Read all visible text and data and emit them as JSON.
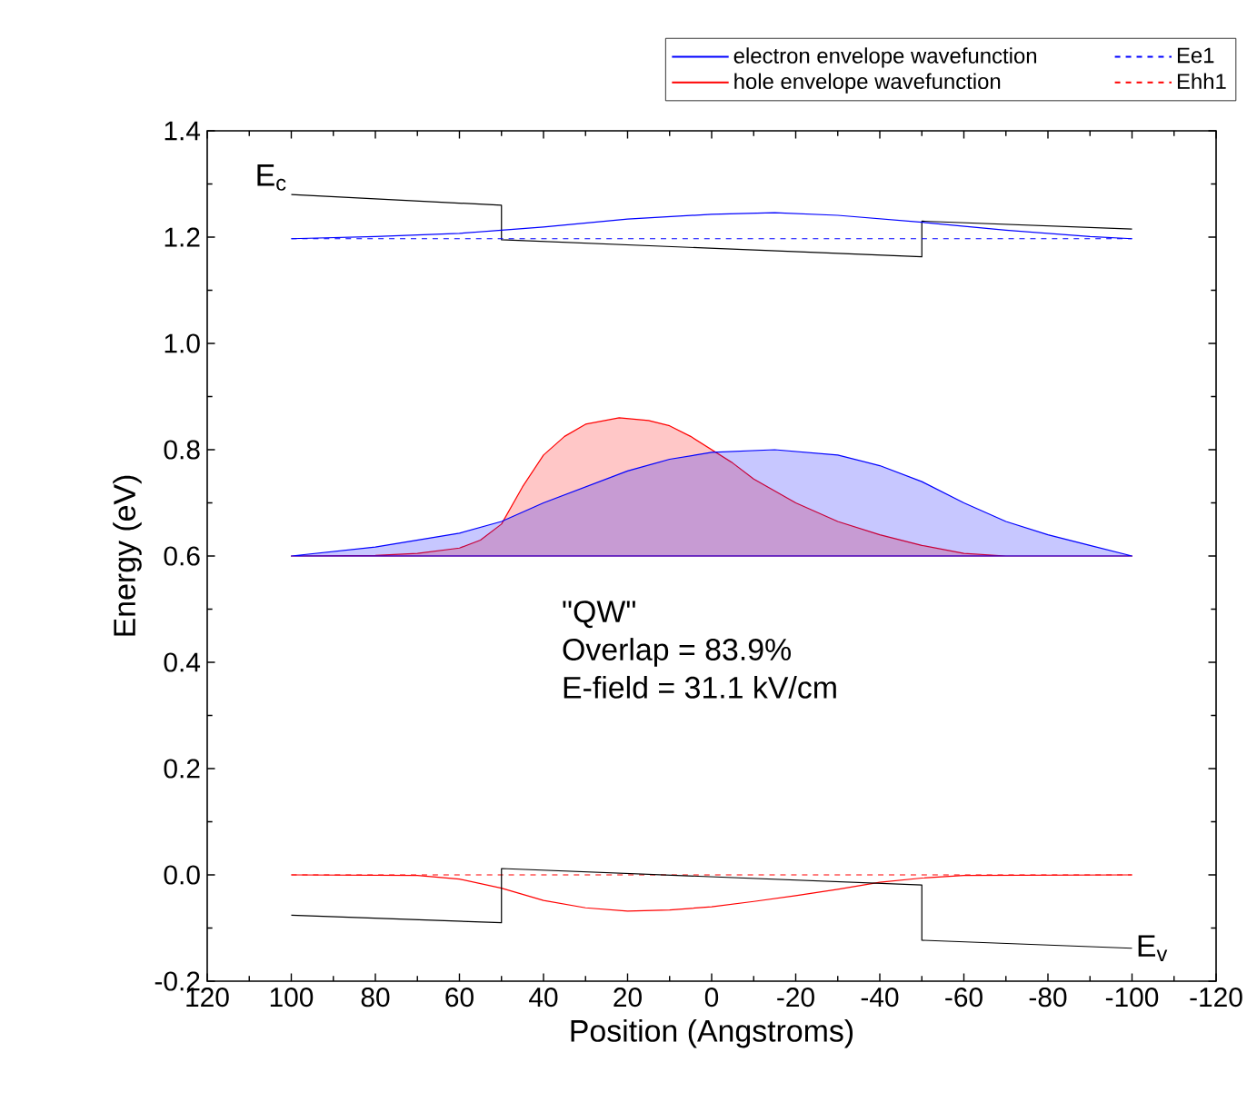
{
  "chart_data": {
    "type": "line",
    "xlabel": "Position (Angstroms)",
    "ylabel": "Energy (eV)",
    "xlim": [
      120,
      -120
    ],
    "xticks": [
      120,
      100,
      80,
      60,
      40,
      20,
      0,
      -20,
      -40,
      -60,
      -80,
      -100,
      -120
    ],
    "ylim": [
      -0.2,
      1.4
    ],
    "yticks": [
      -0.2,
      {
        "value": 0,
        "label": "0.0"
      },
      0.2,
      0.4,
      0.6,
      0.8,
      {
        "value": 1,
        "label": "1.0"
      },
      1.2,
      1.4
    ],
    "legend": "top",
    "series": [
      {
        "color": "#000000",
        "x": [
          100,
          50,
          50,
          -50,
          -50,
          -100
        ],
        "values": [
          1.28,
          1.26,
          1.195,
          1.163,
          1.23,
          1.215
        ]
      },
      {
        "name": "electron envelope wavefunction",
        "color": "#0000ff",
        "x": [
          100,
          80,
          60,
          50,
          40,
          20,
          0,
          -15,
          -30,
          -50,
          -70,
          -90,
          -100
        ],
        "values": [
          1.197,
          1.201,
          1.207,
          1.213,
          1.219,
          1.234,
          1.243,
          1.246,
          1.241,
          1.228,
          1.213,
          1.201,
          1.197
        ]
      },
      {
        "name": "Ee1",
        "color": "#0000ff",
        "line_style": "dashed",
        "x": [
          100,
          -100
        ],
        "values": [
          1.197,
          1.197
        ]
      },
      {
        "name": "hole envelope wavefunction",
        "color": "#ff0000",
        "x": [
          100,
          70,
          60,
          50,
          40,
          30,
          20,
          10,
          0,
          -10,
          -20,
          -30,
          -40,
          -50,
          -60,
          -100
        ],
        "values": [
          0.0,
          -0.001,
          -0.008,
          -0.025,
          -0.048,
          -0.062,
          -0.068,
          -0.066,
          -0.06,
          -0.05,
          -0.039,
          -0.027,
          -0.014,
          -0.006,
          -0.001,
          0.0
        ]
      },
      {
        "name": "Ehh1",
        "color": "#ff0000",
        "line_style": "dashed",
        "x": [
          100,
          -100
        ],
        "values": [
          0.0,
          0.0
        ]
      },
      {
        "color": "#000000",
        "x": [
          100,
          50,
          50,
          -50,
          -50,
          -100
        ],
        "values": [
          -0.076,
          -0.09,
          0.012,
          -0.019,
          -0.123,
          -0.138
        ]
      },
      {
        "type": "area",
        "color": "#ff0000",
        "x": [
          100,
          80,
          70,
          60,
          55,
          50,
          45,
          40,
          35,
          30,
          22,
          15,
          10,
          5,
          0,
          -5,
          -10,
          -20,
          -30,
          -40,
          -50,
          -60,
          -70,
          -100
        ],
        "values": [
          0.6,
          0.601,
          0.605,
          0.615,
          0.63,
          0.66,
          0.73,
          0.79,
          0.825,
          0.848,
          0.86,
          0.855,
          0.845,
          0.825,
          0.8,
          0.775,
          0.745,
          0.7,
          0.665,
          0.64,
          0.62,
          0.605,
          0.6,
          0.6
        ]
      },
      {
        "type": "area",
        "color": "#0000ff",
        "x": [
          100,
          80,
          60,
          50,
          40,
          30,
          20,
          10,
          0,
          -15,
          -30,
          -40,
          -50,
          -60,
          -70,
          -80,
          -90,
          -100
        ],
        "values": [
          0.6,
          0.617,
          0.643,
          0.665,
          0.7,
          0.73,
          0.76,
          0.782,
          0.795,
          0.8,
          0.79,
          0.77,
          0.74,
          0.7,
          0.665,
          0.64,
          0.62,
          0.6
        ]
      }
    ],
    "annotations": [
      {
        "text": "E$_{c}$",
        "x": 100,
        "y": 1.28
      },
      {
        "text": "E$_{v}$",
        "x": -100,
        "y": -0.138
      },
      "\"QW\"",
      "Overlap = 83.9%",
      "E-field = 31.1 kV/cm"
    ]
  }
}
